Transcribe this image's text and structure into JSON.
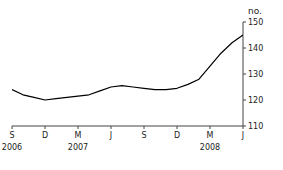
{
  "chart_data": {
    "type": "line",
    "y_label": "no.",
    "categories": [
      "S",
      null,
      null,
      "D",
      null,
      null,
      "M",
      null,
      null,
      "J",
      null,
      null,
      "S",
      null,
      null,
      "D",
      null,
      null,
      "M",
      null,
      null,
      "J"
    ],
    "values": [
      124,
      122,
      121,
      120,
      120.5,
      121,
      121.5,
      122,
      123.5,
      125,
      125.5,
      125,
      124.5,
      124,
      124,
      124.5,
      126,
      128,
      133,
      138,
      142,
      145
    ],
    "color": "#000000",
    "ylim": [
      110,
      150
    ],
    "yticks": [
      110,
      120,
      130,
      140,
      150
    ],
    "grid": false,
    "annotations": [
      {
        "text": "2006",
        "x": 0
      },
      {
        "text": "2007",
        "x": 6
      },
      {
        "text": "2008",
        "x": 18
      }
    ]
  }
}
